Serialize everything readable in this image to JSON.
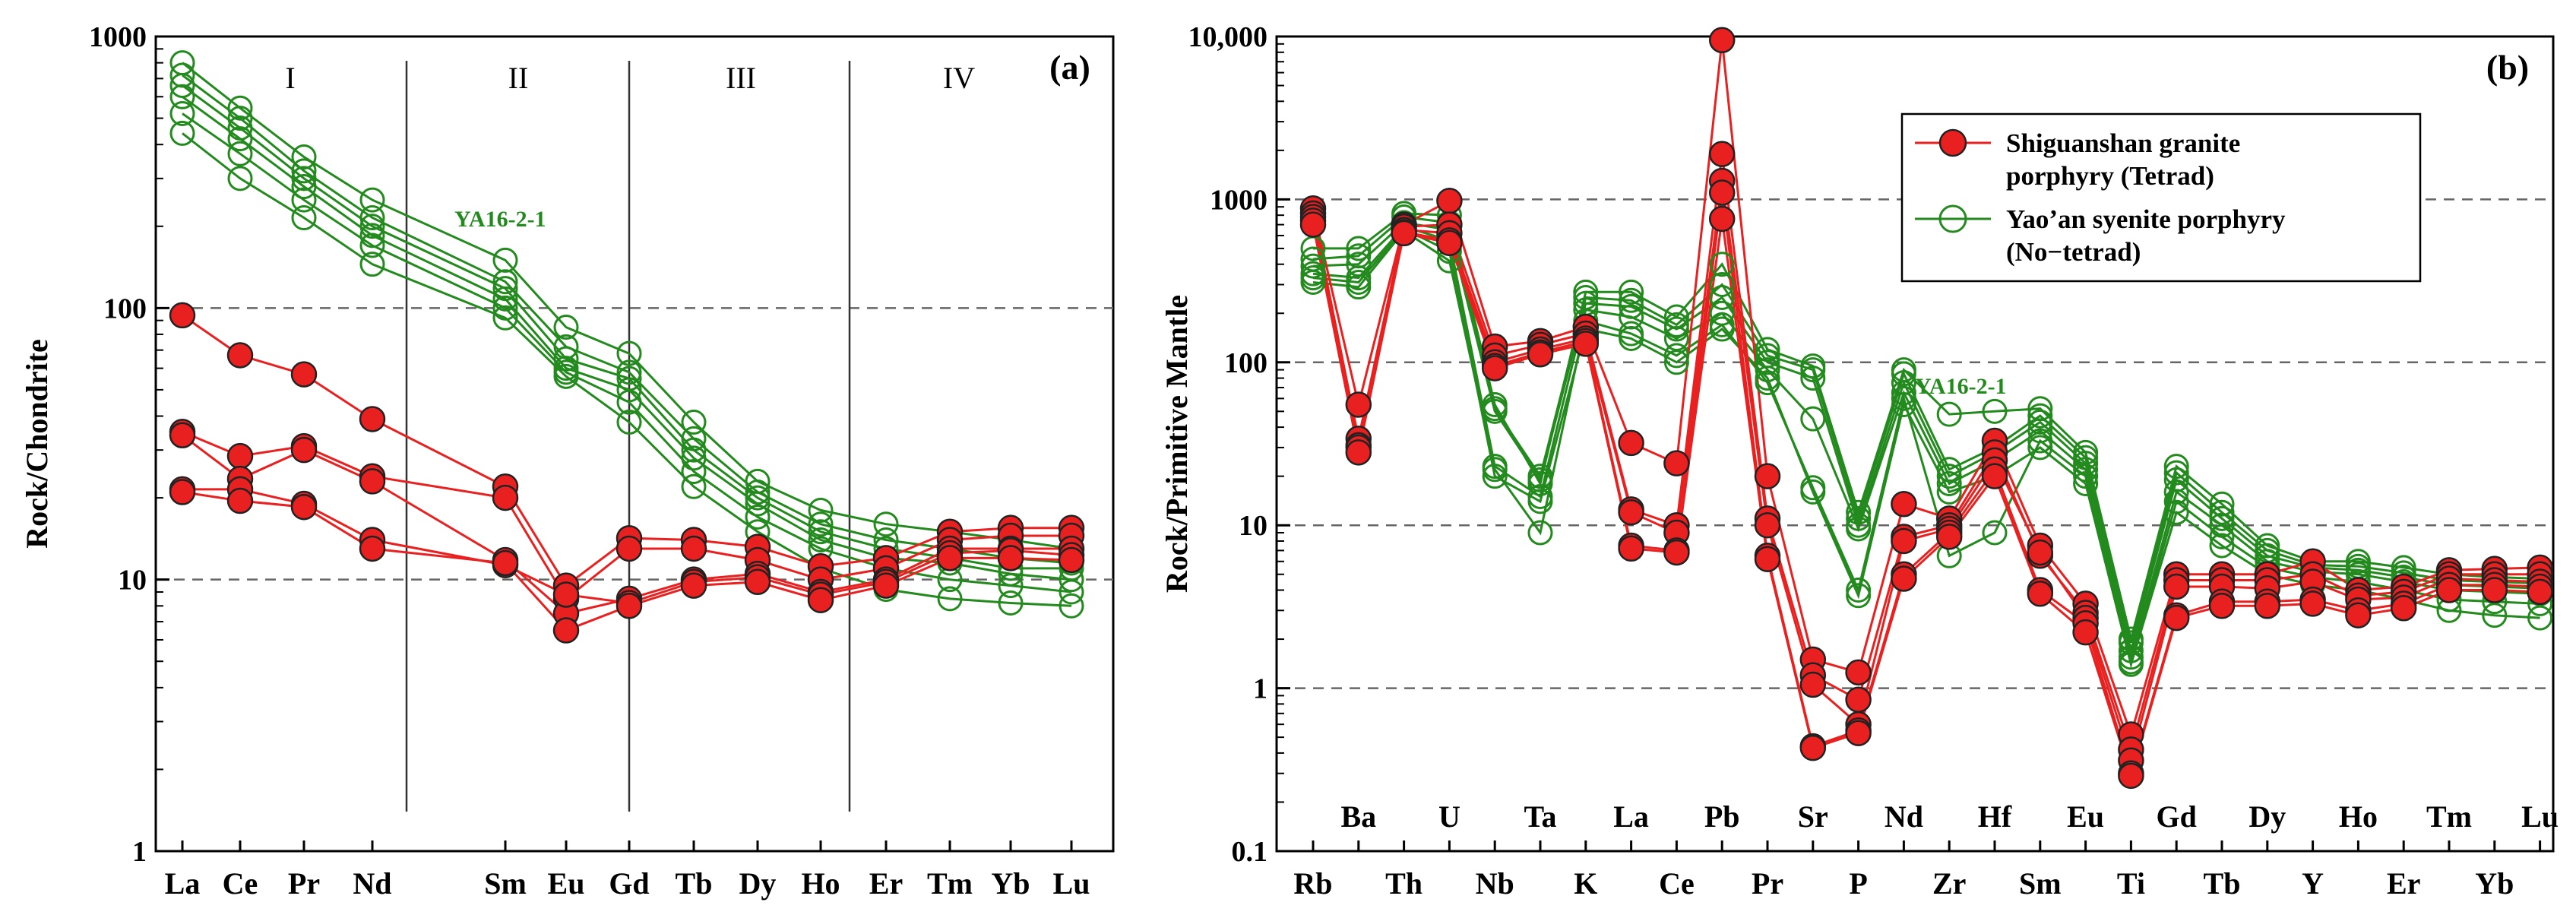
{
  "colors": {
    "tetrad": "#e8201f",
    "tetrad_edge": "#222222",
    "notetrad": "#238a1e",
    "grid": "#666666"
  },
  "chart_data": [
    {
      "type": "line",
      "panel_label": "(a)",
      "ylabel": "Rock/Chondrite",
      "yscale": "log",
      "ylim": [
        1,
        1000
      ],
      "ytick_labels": [
        "1",
        "10",
        "100",
        "1000"
      ],
      "dashed_gridlines": [
        10,
        100
      ],
      "categories": [
        "La",
        "Ce",
        "Pr",
        "Nd",
        "Sm",
        "Eu",
        "Gd",
        "Tb",
        "Dy",
        "Ho",
        "Er",
        "Tm",
        "Yb",
        "Lu"
      ],
      "region_labels": [
        "I",
        "II",
        "III",
        "IV"
      ],
      "annotation": "YA16-2-1",
      "series": [
        {
          "group": "Shiguanshan granite porphyry (Tetrad)",
          "values": [
            94,
            67,
            57,
            39,
            22,
            9.5,
            14.2,
            14.0,
            13.2,
            11.2,
            12.0,
            15.0,
            15.5,
            15.5
          ]
        },
        {
          "group": "Shiguanshan granite porphyry (Tetrad)",
          "values": [
            35,
            28.5,
            31,
            24,
            20,
            8.5,
            13.0,
            13.0,
            11.8,
            10.0,
            11.0,
            14.0,
            14.5,
            14.5
          ]
        },
        {
          "group": "Shiguanshan granite porphyry (Tetrad)",
          "values": [
            34,
            23.5,
            30,
            23,
            11.8,
            7.5,
            8.5,
            10.0,
            10.5,
            9.0,
            10.0,
            13.0,
            13.0,
            13.0
          ]
        },
        {
          "group": "Shiguanshan granite porphyry (Tetrad)",
          "values": [
            21.5,
            21.5,
            19,
            14,
            11.3,
            8.8,
            8.2,
            9.8,
            10.2,
            8.8,
            9.8,
            12.5,
            12.8,
            12.3
          ]
        },
        {
          "group": "Shiguanshan granite porphyry (Tetrad)",
          "values": [
            21,
            19.5,
            18.5,
            13,
            11.5,
            6.5,
            8.0,
            9.5,
            9.8,
            8.4,
            9.5,
            12.0,
            12.0,
            11.8
          ]
        },
        {
          "group": "Yao'an syenite porphyry (No-tetrad)",
          "values": [
            800,
            545,
            360,
            250,
            150,
            85,
            68,
            38,
            23,
            18,
            16,
            15,
            14,
            13
          ]
        },
        {
          "group": "Yao'an syenite porphyry (No-tetrad)",
          "values": [
            720,
            500,
            320,
            215,
            125,
            72,
            58,
            33,
            21,
            16,
            14,
            13,
            12,
            11.5
          ]
        },
        {
          "group": "Yao'an syenite porphyry (No-tetrad)",
          "values": [
            660,
            460,
            300,
            200,
            118,
            65,
            55,
            30,
            20,
            15,
            13,
            12,
            11,
            11
          ]
        },
        {
          "group": "Yao'an syenite porphyry (No-tetrad)",
          "values": [
            600,
            420,
            280,
            185,
            108,
            60,
            50,
            28,
            19,
            14,
            12,
            11.5,
            10.5,
            10
          ]
        },
        {
          "group": "Yao'an syenite porphyry (No-tetrad)",
          "values": [
            520,
            370,
            250,
            170,
            100,
            58,
            45,
            25,
            17,
            13,
            11,
            10,
            9.5,
            9
          ]
        },
        {
          "group": "Yao'an syenite porphyry (No-tetrad)",
          "values": [
            440,
            300,
            215,
            145,
            92,
            56,
            38,
            22,
            15,
            11,
            9.2,
            8.5,
            8.2,
            8
          ]
        }
      ]
    },
    {
      "type": "line",
      "panel_label": "(b)",
      "ylabel": "Rock/Primitive Mantle",
      "yscale": "log",
      "ylim": [
        0.1,
        10000
      ],
      "ytick_labels": [
        "0.1",
        "1",
        "10",
        "100",
        "1000",
        "10,000"
      ],
      "dashed_gridlines": [
        1,
        10,
        100,
        1000
      ],
      "categories": [
        "Rb",
        "Ba",
        "Th",
        "U",
        "Nb",
        "Ta",
        "K",
        "La",
        "Ce",
        "Pb",
        "Pr",
        "Sr",
        "P",
        "Nd",
        "Zr",
        "Hf",
        "Sm",
        "Eu",
        "Ti",
        "Gd",
        "Tb",
        "Dy",
        "Y",
        "Ho",
        "Er",
        "Tm",
        "Yb",
        "Lu"
      ],
      "legend": [
        {
          "line1": "Shiguanshan granite",
          "line2": "porphyry (Tetrad)"
        },
        {
          "line1": "Yao’an syenite porphyry",
          "line2": "(No−tetrad)"
        }
      ],
      "annotation": "YA16-2-1",
      "series": [
        {
          "group": "Shiguanshan granite porphyry (Tetrad)",
          "values": [
            880,
            55,
            700,
            980,
            125,
            135,
            165,
            32,
            24,
            9500,
            20,
            1.5,
            1.25,
            13.5,
            11,
            33,
            7.5,
            3.3,
            0.52,
            5,
            5,
            5,
            6,
            4,
            4.2,
            5.3,
            5.4,
            5.5
          ]
        },
        {
          "group": "Shiguanshan granite porphyry (Tetrad)",
          "values": [
            820,
            34,
            680,
            700,
            110,
            128,
            150,
            12.5,
            10,
            1900,
            11,
            1.2,
            0.85,
            8.5,
            10,
            28,
            6.5,
            2.9,
            0.42,
            4.6,
            4.6,
            4.6,
            5,
            3.7,
            3.9,
            5,
            5,
            5
          ]
        },
        {
          "group": "Shiguanshan granite porphyry (Tetrad)",
          "values": [
            780,
            31,
            650,
            620,
            100,
            120,
            140,
            12,
            9,
            1300,
            10,
            1.05,
            0.6,
            8,
            9.5,
            25,
            6.8,
            2.7,
            0.36,
            4.2,
            4.2,
            4.1,
            4.5,
            3.5,
            3.6,
            4.7,
            4.6,
            4.5
          ]
        },
        {
          "group": "Shiguanshan granite porphyry (Tetrad)",
          "values": [
            740,
            30,
            630,
            560,
            95,
            115,
            135,
            7.5,
            7,
            1100,
            6.5,
            0.44,
            0.55,
            5,
            9,
            22,
            4,
            2.5,
            0.3,
            2.8,
            3.4,
            3.4,
            3.5,
            3,
            3.3,
            4.3,
            4.3,
            4.2
          ]
        },
        {
          "group": "Shiguanshan granite porphyry (Tetrad)",
          "values": [
            700,
            28,
            620,
            540,
            92,
            112,
            130,
            7.2,
            6.8,
            760,
            6.2,
            0.43,
            0.53,
            4.7,
            8.5,
            20,
            3.8,
            2.2,
            0.29,
            2.7,
            3.2,
            3.2,
            3.3,
            2.8,
            3.1,
            4,
            4,
            3.9
          ]
        },
        {
          "group": "Yao'an syenite porphyry (No-tetrad)",
          "values": [
            500,
            500,
            820,
            800,
            55,
            18,
            270,
            270,
            190,
            400,
            120,
            95,
            12,
            90,
            48,
            50,
            52,
            28,
            2,
            23,
            13.5,
            7.5,
            6,
            6,
            5.5,
            5,
            4.8,
            4.7
          ]
        },
        {
          "group": "Yao'an syenite porphyry (No-tetrad)",
          "values": [
            430,
            450,
            780,
            720,
            52,
            20,
            250,
            240,
            170,
            300,
            110,
            90,
            11,
            85,
            22,
            30,
            47,
            26,
            1.9,
            21,
            12,
            7,
            5.7,
            5.6,
            5.1,
            4.6,
            4.5,
            4.4
          ]
        },
        {
          "group": "Yao'an syenite porphyry (No-tetrad)",
          "values": [
            390,
            400,
            720,
            650,
            50,
            19,
            230,
            220,
            160,
            250,
            100,
            80,
            10,
            75,
            20,
            28,
            43,
            24,
            1.7,
            19,
            11,
            6.5,
            5.5,
            5.3,
            4.8,
            4.3,
            4.2,
            4.1
          ]
        },
        {
          "group": "Yao'an syenite porphyry (No-tetrad)",
          "values": [
            350,
            330,
            680,
            560,
            23,
            15,
            210,
            190,
            140,
            200,
            90,
            45,
            9.5,
            65,
            18,
            25,
            38,
            22,
            1.55,
            16,
            10,
            6,
            5.2,
            5,
            4.5,
            4,
            3.9,
            3.8
          ]
        },
        {
          "group": "Yao'an syenite porphyry (No-tetrad)",
          "values": [
            310,
            290,
            640,
            420,
            22,
            9,
            180,
            150,
            110,
            170,
            75,
            17,
            4,
            60,
            6.5,
            9,
            33,
            20,
            1.45,
            14,
            8.5,
            5.5,
            4.8,
            4.5,
            4,
            3.5,
            3.4,
            3.3
          ]
        },
        {
          "group": "Yao'an syenite porphyry (No-tetrad)",
          "values": [
            330,
            310,
            660,
            480,
            20,
            14,
            160,
            140,
            100,
            160,
            80,
            16,
            3.7,
            55,
            16,
            20,
            30,
            18,
            1.4,
            12,
            7.5,
            5,
            4.3,
            4,
            3.5,
            3,
            2.8,
            2.7
          ]
        }
      ]
    }
  ]
}
